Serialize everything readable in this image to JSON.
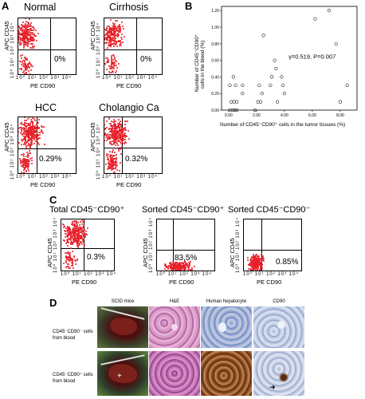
{
  "panel_a": {
    "letter": "A",
    "plots": [
      {
        "title": "Normal",
        "percent": "0%",
        "ylabel": "APC CD45",
        "xlabel": "PE CD90",
        "yticks": "10⁰ 10¹ 10² 10³ 10⁴",
        "xticks": "10⁰ 10¹ 10² 10³ 10⁴"
      },
      {
        "title": "Cirrhosis",
        "percent": "0%",
        "ylabel": "APC CD45",
        "xlabel": "PE CD90",
        "yticks": "10⁰ 10¹ 10² 10³ 10⁴",
        "xticks": "10⁰ 10¹ 10² 10³ 10⁴"
      },
      {
        "title": "HCC",
        "percent": "0.29%",
        "ylabel": "APC CD45",
        "xlabel": "PE CD90",
        "yticks": "10⁰ 10¹ 10² 10³ 10⁴",
        "xticks": "10⁰ 10¹ 10² 10³ 10⁴"
      },
      {
        "title": "Cholangio Ca",
        "percent": "0.32%",
        "ylabel": "APC CD45",
        "xlabel": "PE CD90",
        "yticks": "10⁰ 10¹ 10² 10³ 10⁴",
        "xticks": "10⁰ 10¹ 10² 10³ 10⁴"
      }
    ]
  },
  "panel_b": {
    "letter": "B",
    "ylabel_line1": "Number of CD45⁻CD90⁺",
    "ylabel_line2": "cells in the blood (%)",
    "xlabel": "Number of CD45⁻CD90⁺ cells in the tumor tissues (%)",
    "annotation": "γ=0.519, P=0.007",
    "yticks": [
      "1.20",
      "1.00",
      "0.80",
      "0.60",
      "0.40",
      "0.20",
      "0.00"
    ],
    "xticks": [
      "0.00",
      "2.00",
      "4.00",
      "6.00",
      "8.00"
    ]
  },
  "chart_data": {
    "type": "scatter",
    "title": "",
    "xlabel": "Number of CD45⁻CD90⁺ cells in the tumor tissues (%)",
    "ylabel": "Number of CD45⁻CD90⁺ cells in the blood (%)",
    "xlim": [
      -0.5,
      9.2
    ],
    "ylim": [
      0,
      1.25
    ],
    "grid": false,
    "points": [
      {
        "x": 0.1,
        "y": 0.0
      },
      {
        "x": 0.3,
        "y": 0.0
      },
      {
        "x": 0.45,
        "y": 0.0
      },
      {
        "x": 0.6,
        "y": 0.0
      },
      {
        "x": 0.2,
        "y": 0.1
      },
      {
        "x": 0.4,
        "y": 0.1
      },
      {
        "x": 0.6,
        "y": 0.1
      },
      {
        "x": 0.5,
        "y": 0.3
      },
      {
        "x": 0.1,
        "y": 0.3
      },
      {
        "x": 1.0,
        "y": 0.3
      },
      {
        "x": 0.35,
        "y": 0.4
      },
      {
        "x": 1.0,
        "y": 0.2
      },
      {
        "x": 1.9,
        "y": 0.0
      },
      {
        "x": 2.1,
        "y": 0.1
      },
      {
        "x": 2.3,
        "y": 0.1
      },
      {
        "x": 2.4,
        "y": 0.2
      },
      {
        "x": 2.2,
        "y": 0.3
      },
      {
        "x": 2.5,
        "y": 0.9
      },
      {
        "x": 3.0,
        "y": 0.3
      },
      {
        "x": 3.1,
        "y": 0.4
      },
      {
        "x": 3.3,
        "y": 0.6
      },
      {
        "x": 3.4,
        "y": 0.5
      },
      {
        "x": 3.5,
        "y": 0.1
      },
      {
        "x": 3.8,
        "y": 0.4
      },
      {
        "x": 3.9,
        "y": 0.3
      },
      {
        "x": 4.0,
        "y": 0.2
      },
      {
        "x": 6.2,
        "y": 1.1
      },
      {
        "x": 7.2,
        "y": 1.2
      },
      {
        "x": 7.7,
        "y": 0.8
      },
      {
        "x": 8.0,
        "y": 0.1
      },
      {
        "x": 8.5,
        "y": 0.3
      }
    ]
  },
  "panel_c": {
    "letter": "C",
    "plots": [
      {
        "title": "Total CD45⁻CD90⁺",
        "percent": "0.3%",
        "ylabel": "APC CD45",
        "xlabel": "PE CD90",
        "yticks": "10⁰ 10¹ 10² 10³ 10⁴",
        "xticks": "10⁰ 10¹ 10² 10³ 10⁴"
      },
      {
        "title": "Sorted CD45⁻CD90⁺",
        "percent": "83.5%",
        "ylabel": "APC CD45",
        "xlabel": "PE CD90",
        "yticks": "10⁰ 10¹ 10² 10³ 10⁴",
        "xticks": "10⁰ 10¹ 10² 10³ 10⁴"
      },
      {
        "title": "Sorted CD45⁻CD90⁻",
        "percent": "0.85%",
        "ylabel": "APC CD45",
        "xlabel": "PE CD90",
        "yticks": "10⁰ 10¹ 10² 10³ 10⁴",
        "xticks": "10⁰ 10¹ 10² 10³ 10⁴"
      }
    ]
  },
  "panel_d": {
    "letter": "D",
    "col_headers": [
      "SCID mice",
      "H&E",
      "Human hepatocyte",
      "CD90"
    ],
    "row_labels": [
      {
        "line1": "CD45⁻CD90⁻ cells",
        "line2": "from blood"
      },
      {
        "line1": "CD45⁻CD90⁺ cells",
        "line2": "from blood"
      }
    ]
  },
  "colors": {
    "dot": "#e8202a",
    "he_pink": "#c977b8",
    "ihc_blue": "#7f95c7",
    "ihc_brown": "#8a4a1f"
  }
}
